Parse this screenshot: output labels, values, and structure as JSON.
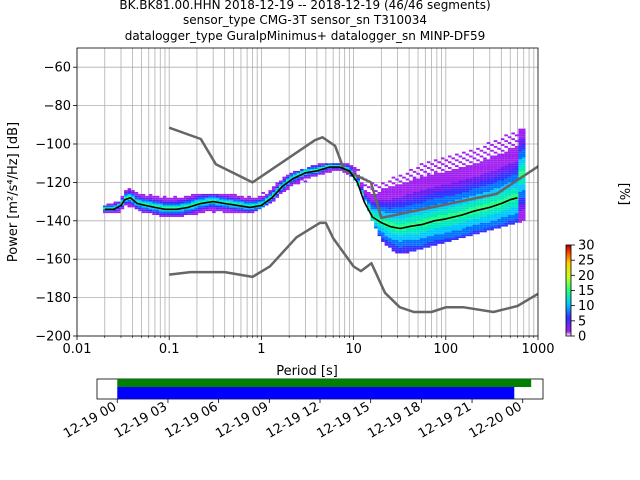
{
  "chart_data": {
    "type": "heatmap",
    "title": {
      "line1": "BK.BK81.00.HHN   2018-12-19 -- 2018-12-19  (46/46 segments)",
      "line2": "sensor_type CMG-3T sensor_sn T310034",
      "line3": "datalogger_type GuralpMinimus+ datalogger_sn MINP-DF59"
    },
    "xlabel": "Period [s]",
    "ylabel": "Power [m²/s⁴/Hz] [dB]",
    "xscale": "log",
    "xlim": [
      0.01,
      1000
    ],
    "ylim": [
      -200,
      -50
    ],
    "xticks": [
      {
        "value": 0.01,
        "label": "0.01"
      },
      {
        "value": 0.1,
        "label": "0.1"
      },
      {
        "value": 1,
        "label": "1"
      },
      {
        "value": 10,
        "label": "10"
      },
      {
        "value": 100,
        "label": "100"
      },
      {
        "value": 1000,
        "label": "1000"
      }
    ],
    "yticks": [
      {
        "value": -60,
        "label": "−60"
      },
      {
        "value": -80,
        "label": "−80"
      },
      {
        "value": -100,
        "label": "−100"
      },
      {
        "value": -120,
        "label": "−120"
      },
      {
        "value": -140,
        "label": "−140"
      },
      {
        "value": -160,
        "label": "−160"
      },
      {
        "value": -180,
        "label": "−180"
      },
      {
        "value": -200,
        "label": "−200"
      }
    ],
    "grid": true,
    "colorbar": {
      "label": "[%]",
      "min": 0,
      "max": 30,
      "ticks": [
        {
          "value": 0,
          "label": "0"
        },
        {
          "value": 5,
          "label": "5"
        },
        {
          "value": 10,
          "label": "10"
        },
        {
          "value": 15,
          "label": "15"
        },
        {
          "value": 20,
          "label": "20"
        },
        {
          "value": 25,
          "label": "25"
        },
        {
          "value": 30,
          "label": "30"
        }
      ]
    },
    "nhnm": {
      "name": "",
      "periods": [
        0.1,
        0.22,
        0.32,
        0.8,
        3.8,
        4.6,
        6.3,
        7.9,
        15.4,
        20,
        354.8,
        10000
      ],
      "values": [
        -91.5,
        -97.4,
        -110.5,
        -120.0,
        -98.0,
        -96.5,
        -101.0,
        -113.5,
        -120.0,
        -138.5,
        -126.0,
        -80.1
      ]
    },
    "nlnm": {
      "name": "",
      "periods": [
        0.1,
        0.17,
        0.4,
        0.8,
        1.24,
        2.4,
        4.3,
        5.0,
        6.0,
        10.0,
        12.0,
        15.6,
        21.9,
        31.6,
        45.0,
        70.0,
        101.0,
        154.0,
        328.0,
        600.0,
        1000
      ],
      "values": [
        -168,
        -166.7,
        -166.7,
        -169.2,
        -163.7,
        -148.6,
        -141.1,
        -141.1,
        -149.0,
        -163.8,
        -166.2,
        -162.1,
        -177.5,
        -185.0,
        -187.5,
        -187.5,
        -185.0,
        -185.0,
        -187.5,
        -184.4,
        -178.0
      ]
    },
    "mean_psd": {
      "name": "",
      "periods": [
        0.02,
        0.025,
        0.03,
        0.033,
        0.038,
        0.045,
        0.055,
        0.07,
        0.09,
        0.12,
        0.16,
        0.22,
        0.3,
        0.4,
        0.55,
        0.75,
        1.0,
        1.3,
        1.7,
        2.2,
        3.0,
        4.0,
        5.5,
        7.0,
        9.0,
        11.0,
        13.0,
        16.0,
        20.0,
        25.0,
        32.0,
        40.0,
        55.0,
        75.0,
        100,
        150,
        200,
        300,
        400,
        500,
        600
      ],
      "values": [
        -134,
        -134,
        -132,
        -129,
        -128,
        -131,
        -132,
        -133,
        -134,
        -134,
        -133,
        -131,
        -130,
        -131,
        -132,
        -133,
        -132,
        -128,
        -122,
        -118,
        -115,
        -114,
        -112,
        -112,
        -114,
        -120,
        -130,
        -138,
        -141,
        -143,
        -144,
        -143,
        -142,
        -140,
        -139,
        -137,
        -135,
        -133,
        -131,
        -129,
        -128
      ]
    },
    "histogram_band": {
      "periods": [
        0.02,
        0.03,
        0.033,
        0.05,
        0.1,
        0.2,
        0.4,
        0.8,
        1.2,
        2,
        4,
        7,
        10,
        13,
        16,
        20,
        30,
        50,
        100,
        200,
        400,
        700
      ],
      "low": [
        -136,
        -135,
        -131,
        -135,
        -138,
        -136,
        -135,
        -136,
        -131,
        -123,
        -117,
        -113,
        -117,
        -128,
        -140,
        -150,
        -157,
        -155,
        -151,
        -147,
        -143,
        -140
      ],
      "high": [
        -132,
        -130,
        -123,
        -126,
        -128,
        -126,
        -126,
        -128,
        -124,
        -116,
        -111,
        -110,
        -110,
        -118,
        -120,
        -120,
        -117,
        -111,
        -107,
        -103,
        -97,
        -92
      ]
    },
    "time_axis": {
      "ticks": [
        {
          "hours": 0,
          "label": "12-19 00"
        },
        {
          "hours": 3,
          "label": "12-19 03"
        },
        {
          "hours": 6,
          "label": "12-19 06"
        },
        {
          "hours": 9,
          "label": "12-19 09"
        },
        {
          "hours": 12,
          "label": "12-19 12"
        },
        {
          "hours": 15,
          "label": "12-19 15"
        },
        {
          "hours": 18,
          "label": "12-19 18"
        },
        {
          "hours": 21,
          "label": "12-19 21"
        },
        {
          "hours": 24,
          "label": "12-20 00"
        }
      ],
      "range_hours": [
        -1.2,
        25.2
      ],
      "data_coverage_hours": [
        0,
        24.5
      ],
      "psd_coverage_hours": [
        0,
        23.5
      ],
      "data_color": "#008000",
      "psd_color": "#0000ff"
    }
  },
  "colors": {
    "noise_model": "#666666",
    "mean_line": "#000000",
    "grid": "#b0b0b0"
  }
}
